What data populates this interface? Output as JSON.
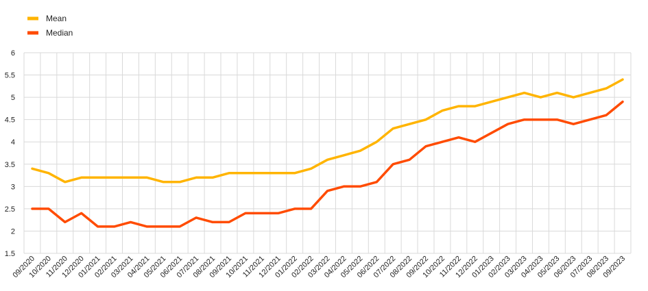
{
  "chart_data": {
    "type": "line",
    "title": "",
    "xlabel": "",
    "ylabel": "",
    "ylim": [
      1.5,
      6
    ],
    "yticks": [
      "1.5",
      "2",
      "2.5",
      "3",
      "3.5",
      "4",
      "4.5",
      "5",
      "5.5",
      "6"
    ],
    "grid": true,
    "legend_position": "top-left",
    "categories": [
      "09/2020",
      "10/2020",
      "11/2020",
      "12/2020",
      "01/2021",
      "02/2021",
      "03/2021",
      "04/2021",
      "05/2021",
      "06/2021",
      "07/2021",
      "08/2021",
      "09/2021",
      "10/2021",
      "11/2021",
      "12/2021",
      "01/2022",
      "02/2022",
      "03/2022",
      "04/2022",
      "05/2022",
      "06/2022",
      "07/2022",
      "08/2022",
      "09/2022",
      "10/2022",
      "11/2022",
      "12/2022",
      "01/2023",
      "02/2023",
      "03/2023",
      "04/2023",
      "05/2023",
      "06/2023",
      "07/2023",
      "08/2023",
      "09/2023"
    ],
    "series": [
      {
        "name": "Mean",
        "color": "#FFB400",
        "values": [
          3.4,
          3.3,
          3.1,
          3.2,
          3.2,
          3.2,
          3.2,
          3.2,
          3.1,
          3.1,
          3.2,
          3.2,
          3.3,
          3.3,
          3.3,
          3.3,
          3.3,
          3.4,
          3.6,
          3.7,
          3.8,
          4.0,
          4.3,
          4.4,
          4.5,
          4.7,
          4.8,
          4.8,
          4.9,
          5.0,
          5.1,
          5.0,
          5.1,
          5.0,
          5.1,
          5.2,
          5.4
        ]
      },
      {
        "name": "Median",
        "color": "#FF4B00",
        "values": [
          2.5,
          2.5,
          2.2,
          2.4,
          2.1,
          2.1,
          2.2,
          2.1,
          2.1,
          2.1,
          2.3,
          2.2,
          2.2,
          2.4,
          2.4,
          2.4,
          2.5,
          2.5,
          2.9,
          3.0,
          3.0,
          3.1,
          3.5,
          3.6,
          3.9,
          4.0,
          4.1,
          4.0,
          4.2,
          4.4,
          4.5,
          4.5,
          4.5,
          4.4,
          4.5,
          4.6,
          4.9
        ]
      }
    ]
  }
}
